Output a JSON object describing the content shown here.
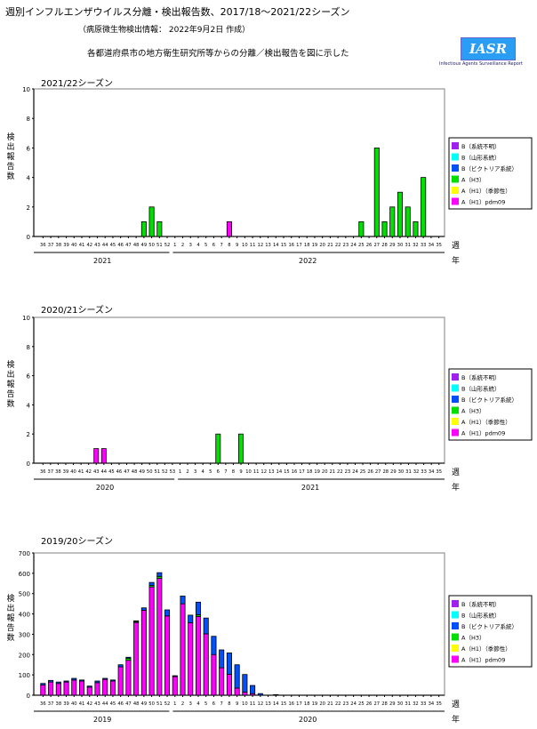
{
  "header": {
    "title": "週別インフルエンザウイルス分離・検出報告数、2017/18～2021/22シーズン",
    "subtitle": "（病原微生物検出情報： 2022年9月2日 作成）",
    "description": "各都道府県市の地方衛生研究所等からの分離／検出報告を図に示した",
    "logo_text": "IASR",
    "logo_subtext": "Infectious Agents Surveillance Report"
  },
  "labels": {
    "ylabel": "検出報告数",
    "week": "週",
    "year": "年"
  },
  "legend": [
    {
      "label": "B（系統不明）",
      "color": "#a020f0"
    },
    {
      "label": "B（山形系統）",
      "color": "#00ffff"
    },
    {
      "label": "B（ビクトリア系統）",
      "color": "#0050ff"
    },
    {
      "label": "A（H3）",
      "color": "#00e000"
    },
    {
      "label": "A（H1）（季節性）",
      "color": "#ffff00"
    },
    {
      "label": "A（H1）pdm09",
      "color": "#ff00ff"
    }
  ],
  "chart_data": [
    {
      "type": "bar",
      "stacked": true,
      "title": "2021/22シーズン",
      "ylim": [
        0,
        10
      ],
      "yticks": [
        0,
        2,
        4,
        6,
        8,
        10
      ],
      "years": [
        "2021",
        "2022"
      ],
      "weeks_year1": [
        36,
        52
      ],
      "weeks_year2": [
        1,
        35
      ],
      "series": [
        {
          "name": "A（H3）",
          "color": "#00e000",
          "points": {
            "49": 1,
            "50": 2,
            "51": 1,
            "y2-25": 1,
            "y2-27": 6,
            "y2-28": 1,
            "y2-29": 2,
            "y2-30": 3,
            "y2-31": 2,
            "y2-32": 1,
            "y2-33": 4
          }
        },
        {
          "name": "A（H1）pdm09",
          "color": "#ff00ff",
          "points": {
            "y2-8": 1
          }
        }
      ]
    },
    {
      "type": "bar",
      "stacked": true,
      "title": "2020/21シーズン",
      "ylim": [
        0,
        10
      ],
      "yticks": [
        0,
        2,
        4,
        6,
        8,
        10
      ],
      "years": [
        "2020",
        "2021"
      ],
      "weeks_year1": [
        36,
        53
      ],
      "weeks_year2": [
        1,
        35
      ],
      "series": [
        {
          "name": "A（H1）pdm09",
          "color": "#ff00ff",
          "points": {
            "43": 1,
            "44": 1
          }
        },
        {
          "name": "A（H3）",
          "color": "#00e000",
          "points": {
            "y2-6": 2,
            "y2-9": 2
          }
        }
      ]
    },
    {
      "type": "bar",
      "stacked": true,
      "title": "2019/20シーズン",
      "ylim": [
        0,
        700
      ],
      "yticks": [
        0,
        100,
        200,
        300,
        400,
        500,
        600,
        700
      ],
      "years": [
        "2019",
        "2020"
      ],
      "weeks_year1": [
        36,
        52
      ],
      "weeks_year2": [
        1,
        35
      ],
      "series": [
        {
          "name": "A（H1）pdm09",
          "color": "#ff00ff",
          "points": {
            "36": 50,
            "37": 65,
            "38": 58,
            "39": 65,
            "40": 75,
            "41": 70,
            "42": 40,
            "43": 62,
            "44": 78,
            "45": 70,
            "46": 140,
            "47": 172,
            "48": 358,
            "49": 418,
            "50": 533,
            "51": 575,
            "52": 390,
            "y2-1": 92,
            "y2-2": 450,
            "y2-3": 357,
            "y2-4": 388,
            "y2-5": 302,
            "y2-6": 200,
            "y2-7": 135,
            "y2-8": 103,
            "y2-9": 35,
            "y2-10": 15,
            "y2-11": 8
          }
        },
        {
          "name": "A（H3）",
          "color": "#00e000",
          "points": {
            "47": 10,
            "48": 5,
            "50": 7,
            "51": 10,
            "y2-4": 8
          }
        },
        {
          "name": "B（ビクトリア系統）",
          "color": "#0050ff",
          "points": {
            "36": 8,
            "37": 8,
            "38": 7,
            "39": 5,
            "40": 8,
            "41": 5,
            "42": 5,
            "43": 8,
            "44": 5,
            "45": 5,
            "46": 10,
            "47": 5,
            "48": 3,
            "49": 12,
            "50": 15,
            "51": 18,
            "52": 30,
            "y2-1": 4,
            "y2-2": 38,
            "y2-3": 37,
            "y2-4": 62,
            "y2-5": 78,
            "y2-6": 90,
            "y2-7": 88,
            "y2-8": 105,
            "y2-9": 115,
            "y2-10": 87,
            "y2-11": 40,
            "y2-12": 8,
            "y2-14": 3
          }
        }
      ]
    }
  ]
}
